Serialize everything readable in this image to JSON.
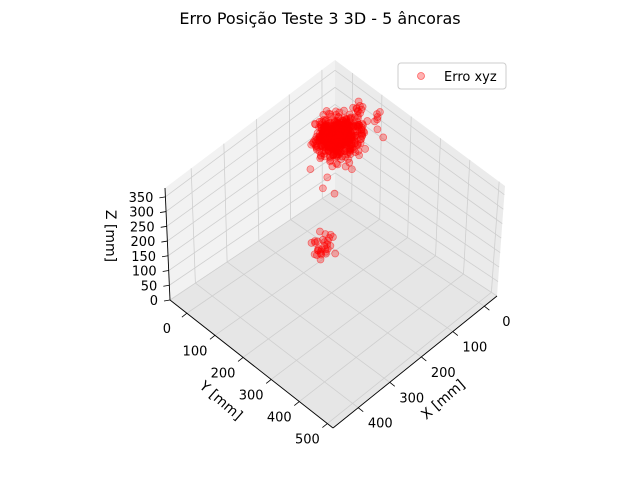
{
  "chart_data": {
    "type": "scatter",
    "projection": "3d",
    "title": "Erro Posição Teste 3 3D - 5 âncoras",
    "xlabel": "X [mm]",
    "ylabel": "Y [mm]",
    "zlabel": "Z [mm]",
    "x_ticks": [
      "0",
      "100",
      "200",
      "300",
      "400"
    ],
    "y_ticks": [
      "0",
      "100",
      "200",
      "300",
      "400",
      "500"
    ],
    "z_ticks": [
      "0",
      "50",
      "100",
      "150",
      "200",
      "250",
      "300",
      "350"
    ],
    "xlim": [
      -40,
      480
    ],
    "ylim": [
      -60,
      520
    ],
    "zlim": [
      0,
      380
    ],
    "legend_position": "top-right",
    "grid": true,
    "series": [
      {
        "name": "Erro xyz",
        "color": "#ff0000",
        "clusters": [
          {
            "center": [
              80,
              80,
              310
            ],
            "spread": [
              25,
              25,
              20
            ],
            "count": 460
          },
          {
            "center": [
              85,
              100,
              285
            ],
            "spread": [
              25,
              25,
              20
            ],
            "count": 40
          },
          {
            "center": [
              -40,
              20,
              240
            ],
            "spread": [
              15,
              15,
              25
            ],
            "count": 35
          },
          {
            "center": [
              -30,
              90,
              290
            ],
            "spread": [
              15,
              15,
              20
            ],
            "count": 8
          },
          {
            "center": [
              320,
              300,
              260
            ],
            "spread": [
              12,
              12,
              22
            ],
            "count": 30
          },
          {
            "center": [
              200,
              170,
              300
            ],
            "spread": [
              20,
              20,
              20
            ],
            "count": 3
          }
        ]
      }
    ]
  }
}
